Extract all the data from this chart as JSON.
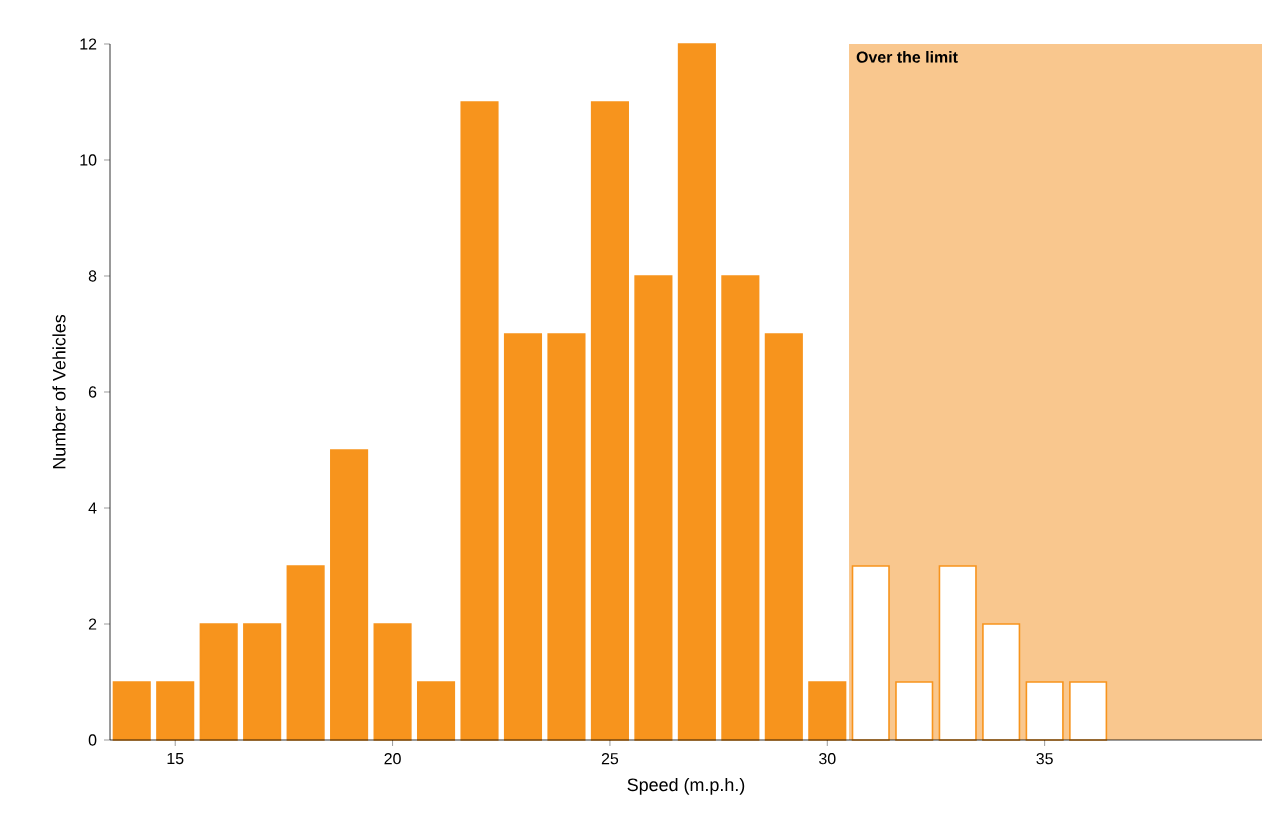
{
  "chart_data": {
    "type": "histogram",
    "xlabel": "Speed (m.p.h.)",
    "ylabel": "Number of Vehicles",
    "bins": [
      13.5,
      14.5,
      15.5,
      16.5,
      17.5,
      18.5,
      19.5,
      20.5,
      21.5,
      22.5,
      23.5,
      24.5,
      25.5,
      26.5,
      27.5,
      28.5,
      29.5,
      30.5,
      31.5,
      32.5,
      33.5,
      34.5,
      35.5,
      36.5
    ],
    "values": [
      1,
      1,
      2,
      2,
      3,
      5,
      2,
      1,
      11,
      7,
      7,
      11,
      8,
      12,
      8,
      7,
      1,
      3,
      1,
      3,
      2,
      1,
      1
    ],
    "color": "#f7941d",
    "colors": [
      "#f7941d",
      "#f7941d",
      "#f7941d",
      "#f7941d",
      "#f7941d",
      "#f7941d",
      "#f7941d",
      "#f7941d",
      "#f7941d",
      "#f7941d",
      "#f7941d",
      "#f7941d",
      "#f7941d",
      "#f7941d",
      "#f7941d",
      "#f7941d",
      "#f7941d",
      "#ffffff",
      "#ffffff",
      "#ffffff",
      "#ffffff",
      "#ffffff",
      "#ffffff"
    ],
    "xlim": [
      13.5,
      40
    ],
    "xticks": [
      15,
      20,
      25,
      30,
      35
    ],
    "ylim": [
      0,
      12
    ],
    "yticks": [
      0,
      2,
      4,
      6,
      8,
      10,
      12
    ],
    "bands": [
      {
        "axis": "x",
        "from": 30.5,
        "to": 40,
        "label": "Over the limit",
        "color": "#f9c78e"
      }
    ],
    "grid": false
  }
}
